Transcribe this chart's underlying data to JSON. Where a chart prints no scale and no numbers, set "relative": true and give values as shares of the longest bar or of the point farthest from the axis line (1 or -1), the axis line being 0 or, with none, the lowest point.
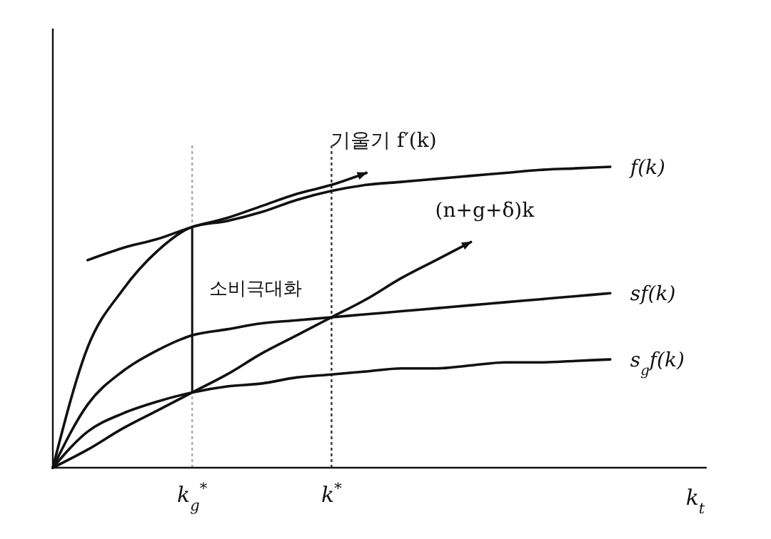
{
  "chart_data": {
    "type": "line",
    "relative": true,
    "xlabel": "k$_{t}$",
    "categories": [
      null,
      null,
      null,
      null,
      "k$_{g}$$^{*}$",
      null,
      null,
      null,
      "k$^{*}$",
      null,
      null,
      null,
      null,
      null,
      null,
      null,
      null,
      null,
      null
    ],
    "series": [
      {
        "name": "f(k)",
        "color": "#111111",
        "values": [
          0,
          0.4,
          0.59,
          0.72,
          0.8,
          0.82,
          0.85,
          0.89,
          0.92,
          0.94,
          0.95,
          0.96,
          0.97,
          0.98,
          0.99,
          0.995,
          1,
          null,
          null
        ]
      },
      {
        "name": "sf(k)",
        "color": "#111111",
        "values": [
          0,
          0.21,
          0.32,
          0.39,
          0.44,
          0.46,
          0.48,
          0.49,
          0.5,
          0.51,
          0.52,
          0.53,
          0.54,
          0.55,
          0.56,
          0.57,
          0.58,
          null,
          null
        ]
      },
      {
        "name": "s$_{g}$f(k)",
        "color": "#111111",
        "values": [
          0,
          0.12,
          0.18,
          0.22,
          0.25,
          0.27,
          0.28,
          0.3,
          0.31,
          0.32,
          0.33,
          0.33,
          0.34,
          0.35,
          0.35,
          0.355,
          0.36,
          null,
          null
        ]
      },
      {
        "name": "(n+g+δ)k",
        "color": "#111111",
        "values": [
          0,
          0.06,
          0.13,
          0.19,
          0.25,
          0.31,
          0.38,
          0.44,
          0.5,
          0.56,
          0.63,
          0.69,
          0.75,
          null,
          null,
          null,
          null,
          null,
          null
        ]
      },
      {
        "name": "기울기 f′(k)",
        "color": "#111111",
        "values": [
          null,
          0.69,
          0.73,
          0.76,
          0.8,
          0.83,
          0.87,
          0.91,
          0.94,
          0.98,
          null,
          null,
          null,
          null,
          null,
          null,
          null,
          null,
          null
        ]
      }
    ],
    "ref_lines": [
      {
        "axis": "x",
        "value": "k$_{g}$$^{*}$",
        "color": "#aaaaaa",
        "line_style": "dotted"
      },
      {
        "axis": "x",
        "value": "k$^{*}$",
        "color": "#333333",
        "line_style": "dotted"
      }
    ],
    "annotations": [
      {
        "text": "소비극대화",
        "x": "k$_{g}$$^{*}$",
        "y": 0.6
      }
    ],
    "line_style": "solid",
    "marker": "none",
    "grid": false,
    "tick_labels": "x"
  }
}
